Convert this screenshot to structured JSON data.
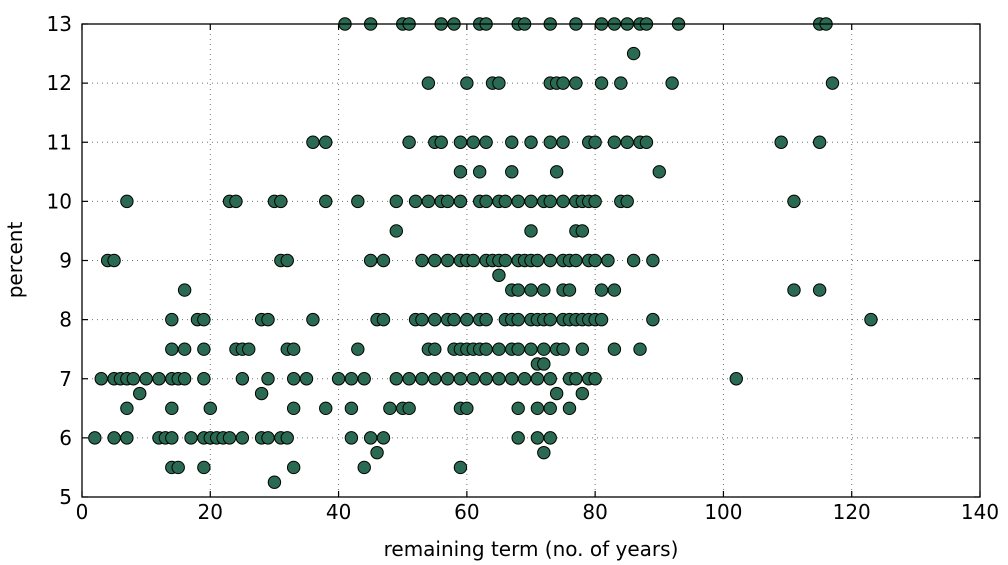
{
  "chart_data": {
    "type": "scatter",
    "xlabel": "remaining term (no. of years)",
    "ylabel": "percent",
    "xlim": [
      0,
      140
    ],
    "ylim": [
      5,
      13
    ],
    "xticks": [
      0,
      20,
      40,
      60,
      80,
      100,
      120,
      140
    ],
    "yticks": [
      5,
      6,
      7,
      8,
      9,
      10,
      11,
      12,
      13
    ],
    "grid": true,
    "marker_color": "#2a6a52",
    "points": [
      [
        41,
        13
      ],
      [
        45,
        13
      ],
      [
        50,
        13
      ],
      [
        51,
        13
      ],
      [
        56,
        13
      ],
      [
        58,
        13
      ],
      [
        62,
        13
      ],
      [
        63,
        13
      ],
      [
        68,
        13
      ],
      [
        69,
        13
      ],
      [
        73,
        13
      ],
      [
        77,
        13
      ],
      [
        81,
        13
      ],
      [
        83,
        13
      ],
      [
        85,
        13
      ],
      [
        87,
        13
      ],
      [
        88,
        13
      ],
      [
        93,
        13
      ],
      [
        115,
        13
      ],
      [
        116,
        13
      ],
      [
        86,
        12.5
      ],
      [
        54,
        12
      ],
      [
        60,
        12
      ],
      [
        64,
        12
      ],
      [
        65,
        12
      ],
      [
        73,
        12
      ],
      [
        74,
        12
      ],
      [
        75,
        12
      ],
      [
        77,
        12
      ],
      [
        81,
        12
      ],
      [
        84,
        12
      ],
      [
        92,
        12
      ],
      [
        117,
        12
      ],
      [
        36,
        11
      ],
      [
        38,
        11
      ],
      [
        51,
        11
      ],
      [
        55,
        11
      ],
      [
        56,
        11
      ],
      [
        59,
        11
      ],
      [
        61,
        11
      ],
      [
        63,
        11
      ],
      [
        67,
        11
      ],
      [
        70,
        11
      ],
      [
        73,
        11
      ],
      [
        75,
        11
      ],
      [
        79,
        11
      ],
      [
        80,
        11
      ],
      [
        83,
        11
      ],
      [
        85,
        11
      ],
      [
        87,
        11
      ],
      [
        88,
        11
      ],
      [
        109,
        11
      ],
      [
        115,
        11
      ],
      [
        59,
        10.5
      ],
      [
        62,
        10.5
      ],
      [
        67,
        10.5
      ],
      [
        74,
        10.5
      ],
      [
        90,
        10.5
      ],
      [
        7,
        10
      ],
      [
        23,
        10
      ],
      [
        24,
        10
      ],
      [
        30,
        10
      ],
      [
        31,
        10
      ],
      [
        38,
        10
      ],
      [
        43,
        10
      ],
      [
        49,
        10
      ],
      [
        52,
        10
      ],
      [
        54,
        10
      ],
      [
        56,
        10
      ],
      [
        57,
        10
      ],
      [
        59,
        10
      ],
      [
        62,
        10
      ],
      [
        63,
        10
      ],
      [
        65,
        10
      ],
      [
        66,
        10
      ],
      [
        68,
        10
      ],
      [
        70,
        10
      ],
      [
        72,
        10
      ],
      [
        73,
        10
      ],
      [
        75,
        10
      ],
      [
        77,
        10
      ],
      [
        78,
        10
      ],
      [
        79,
        10
      ],
      [
        80,
        10
      ],
      [
        84,
        10
      ],
      [
        85,
        10
      ],
      [
        111,
        10
      ],
      [
        49,
        9.5
      ],
      [
        70,
        9.5
      ],
      [
        77,
        9.5
      ],
      [
        78,
        9.5
      ],
      [
        4,
        9
      ],
      [
        5,
        9
      ],
      [
        31,
        9
      ],
      [
        32,
        9
      ],
      [
        45,
        9
      ],
      [
        47,
        9
      ],
      [
        53,
        9
      ],
      [
        55,
        9
      ],
      [
        57,
        9
      ],
      [
        59,
        9
      ],
      [
        60,
        9
      ],
      [
        61,
        9
      ],
      [
        63,
        9
      ],
      [
        64,
        9
      ],
      [
        65,
        9
      ],
      [
        66,
        9
      ],
      [
        68,
        9
      ],
      [
        69,
        9
      ],
      [
        70,
        9
      ],
      [
        71,
        9
      ],
      [
        73,
        9
      ],
      [
        75,
        9
      ],
      [
        76,
        9
      ],
      [
        77,
        9
      ],
      [
        79,
        9
      ],
      [
        80,
        9
      ],
      [
        82,
        9
      ],
      [
        86,
        9
      ],
      [
        89,
        9
      ],
      [
        65,
        8.75
      ],
      [
        16,
        8.5
      ],
      [
        67,
        8.5
      ],
      [
        68,
        8.5
      ],
      [
        70,
        8.5
      ],
      [
        72,
        8.5
      ],
      [
        75,
        8.5
      ],
      [
        76,
        8.5
      ],
      [
        81,
        8.5
      ],
      [
        83,
        8.5
      ],
      [
        111,
        8.5
      ],
      [
        115,
        8.5
      ],
      [
        14,
        8
      ],
      [
        18,
        8
      ],
      [
        19,
        8
      ],
      [
        28,
        8
      ],
      [
        29,
        8
      ],
      [
        36,
        8
      ],
      [
        46,
        8
      ],
      [
        47,
        8
      ],
      [
        52,
        8
      ],
      [
        53,
        8
      ],
      [
        55,
        8
      ],
      [
        57,
        8
      ],
      [
        58,
        8
      ],
      [
        60,
        8
      ],
      [
        62,
        8
      ],
      [
        63,
        8
      ],
      [
        66,
        8
      ],
      [
        67,
        8
      ],
      [
        68,
        8
      ],
      [
        70,
        8
      ],
      [
        71,
        8
      ],
      [
        72,
        8
      ],
      [
        73,
        8
      ],
      [
        75,
        8
      ],
      [
        76,
        8
      ],
      [
        77,
        8
      ],
      [
        78,
        8
      ],
      [
        79,
        8
      ],
      [
        80,
        8
      ],
      [
        81,
        8
      ],
      [
        89,
        8
      ],
      [
        123,
        8
      ],
      [
        14,
        7.5
      ],
      [
        16,
        7.5
      ],
      [
        19,
        7.5
      ],
      [
        24,
        7.5
      ],
      [
        25,
        7.5
      ],
      [
        26,
        7.5
      ],
      [
        32,
        7.5
      ],
      [
        33,
        7.5
      ],
      [
        43,
        7.5
      ],
      [
        54,
        7.5
      ],
      [
        55,
        7.5
      ],
      [
        58,
        7.5
      ],
      [
        59,
        7.5
      ],
      [
        60,
        7.5
      ],
      [
        61,
        7.5
      ],
      [
        62,
        7.5
      ],
      [
        63,
        7.5
      ],
      [
        65,
        7.5
      ],
      [
        67,
        7.5
      ],
      [
        68,
        7.5
      ],
      [
        70,
        7.5
      ],
      [
        72,
        7.5
      ],
      [
        74,
        7.5
      ],
      [
        75,
        7.5
      ],
      [
        78,
        7.5
      ],
      [
        83,
        7.5
      ],
      [
        87,
        7.5
      ],
      [
        71,
        7.25
      ],
      [
        72,
        7.25
      ],
      [
        3,
        7
      ],
      [
        5,
        7
      ],
      [
        6,
        7
      ],
      [
        7,
        7
      ],
      [
        8,
        7
      ],
      [
        10,
        7
      ],
      [
        12,
        7
      ],
      [
        14,
        7
      ],
      [
        15,
        7
      ],
      [
        16,
        7
      ],
      [
        19,
        7
      ],
      [
        25,
        7
      ],
      [
        29,
        7
      ],
      [
        33,
        7
      ],
      [
        35,
        7
      ],
      [
        40,
        7
      ],
      [
        42,
        7
      ],
      [
        44,
        7
      ],
      [
        49,
        7
      ],
      [
        51,
        7
      ],
      [
        53,
        7
      ],
      [
        55,
        7
      ],
      [
        57,
        7
      ],
      [
        59,
        7
      ],
      [
        61,
        7
      ],
      [
        63,
        7
      ],
      [
        65,
        7
      ],
      [
        67,
        7
      ],
      [
        69,
        7
      ],
      [
        71,
        7
      ],
      [
        73,
        7
      ],
      [
        76,
        7
      ],
      [
        77,
        7
      ],
      [
        79,
        7
      ],
      [
        80,
        7
      ],
      [
        102,
        7
      ],
      [
        9,
        6.75
      ],
      [
        28,
        6.75
      ],
      [
        74,
        6.75
      ],
      [
        78,
        6.75
      ],
      [
        7,
        6.5
      ],
      [
        14,
        6.5
      ],
      [
        20,
        6.5
      ],
      [
        33,
        6.5
      ],
      [
        38,
        6.5
      ],
      [
        42,
        6.5
      ],
      [
        48,
        6.5
      ],
      [
        50,
        6.5
      ],
      [
        51,
        6.5
      ],
      [
        59,
        6.5
      ],
      [
        60,
        6.5
      ],
      [
        68,
        6.5
      ],
      [
        71,
        6.5
      ],
      [
        73,
        6.5
      ],
      [
        76,
        6.5
      ],
      [
        2,
        6
      ],
      [
        5,
        6
      ],
      [
        7,
        6
      ],
      [
        12,
        6
      ],
      [
        13,
        6
      ],
      [
        14,
        6
      ],
      [
        17,
        6
      ],
      [
        19,
        6
      ],
      [
        20,
        6
      ],
      [
        21,
        6
      ],
      [
        22,
        6
      ],
      [
        23,
        6
      ],
      [
        25,
        6
      ],
      [
        28,
        6
      ],
      [
        29,
        6
      ],
      [
        31,
        6
      ],
      [
        32,
        6
      ],
      [
        42,
        6
      ],
      [
        45,
        6
      ],
      [
        47,
        6
      ],
      [
        68,
        6
      ],
      [
        71,
        6
      ],
      [
        73,
        6
      ],
      [
        46,
        5.75
      ],
      [
        72,
        5.75
      ],
      [
        14,
        5.5
      ],
      [
        15,
        5.5
      ],
      [
        19,
        5.5
      ],
      [
        33,
        5.5
      ],
      [
        44,
        5.5
      ],
      [
        59,
        5.5
      ],
      [
        30,
        5.25
      ]
    ]
  }
}
